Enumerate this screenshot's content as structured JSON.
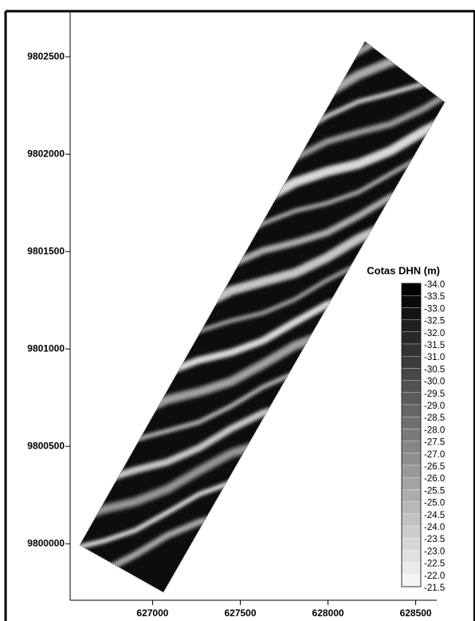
{
  "chart_data": {
    "type": "contour",
    "xlim": [
      626530,
      628620
    ],
    "ylim": [
      9799710,
      9802730
    ],
    "xticks": [
      627000,
      627500,
      628000,
      628500
    ],
    "yticks": [
      9800000,
      9800500,
      9801000,
      9801500,
      9802000,
      9802500
    ],
    "colorbar": {
      "title": "Cotas DHN (m)",
      "colors": [
        "#000000",
        "#ffffff"
      ],
      "levels": [
        {
          "value": -34,
          "label": "-34.0"
        },
        {
          "value": -33.5,
          "label": "-33.5"
        },
        {
          "value": -33,
          "label": "-33.0"
        },
        {
          "value": -32.5,
          "label": "-32.5"
        },
        {
          "value": -32,
          "label": "-32.0"
        },
        {
          "value": -31.5,
          "label": "-31.5"
        },
        {
          "value": -31,
          "label": "-31.0"
        },
        {
          "value": -30.5,
          "label": "-30.5"
        },
        {
          "value": -30,
          "label": "-30.0"
        },
        {
          "value": -29.5,
          "label": "-29.5"
        },
        {
          "value": -29,
          "label": "-29.0"
        },
        {
          "value": -28.5,
          "label": "-28.5"
        },
        {
          "value": -28,
          "label": "-28.0"
        },
        {
          "value": -27.5,
          "label": "-27.5"
        },
        {
          "value": -27,
          "label": "-27.0"
        },
        {
          "value": -26.5,
          "label": "-26.5"
        },
        {
          "value": -26,
          "label": "-26.0"
        },
        {
          "value": -25.5,
          "label": "-25.5"
        },
        {
          "value": -25,
          "label": "-25.0"
        },
        {
          "value": -24.5,
          "label": "-24.5"
        },
        {
          "value": -24,
          "label": "-24.0"
        },
        {
          "value": -23.5,
          "label": "-23.5"
        },
        {
          "value": -23,
          "label": "-23.0"
        },
        {
          "value": -22.5,
          "label": "-22.5"
        },
        {
          "value": -22,
          "label": "-22.0"
        },
        {
          "value": -21.5,
          "label": "-21.5"
        }
      ]
    }
  }
}
